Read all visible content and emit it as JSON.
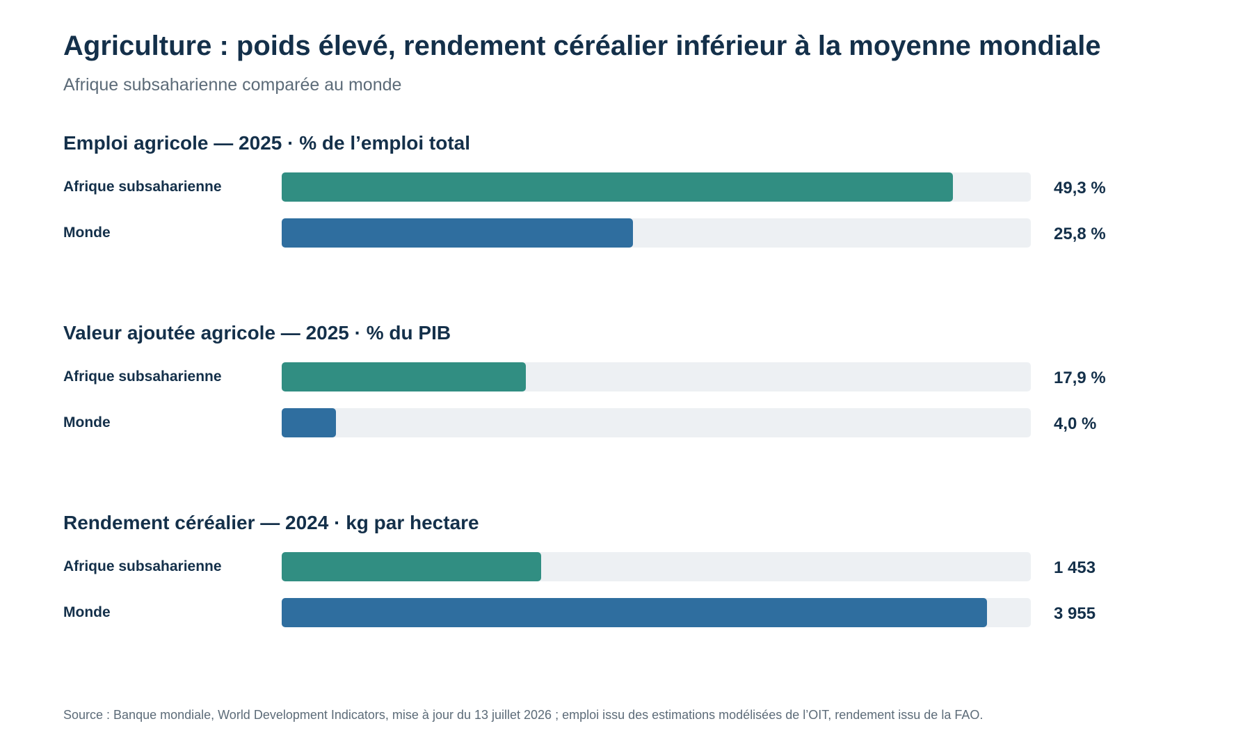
{
  "header": {
    "title": "Agriculture : poids élevé, rendement céréalier inférieur à la moyenne mondiale",
    "subtitle": "Afrique subsaharienne comparée au monde"
  },
  "colors": {
    "ssa": "#318e82",
    "world": "#2f6e9f",
    "track": "#edf0f3",
    "text": "#14304a",
    "muted": "#5c6b78"
  },
  "chart_data": [
    {
      "type": "bar",
      "orientation": "horizontal",
      "title": "Emploi agricole — 2025 · % de l’emploi total",
      "categories": [
        "Afrique subsaharienne",
        "Monde"
      ],
      "values": [
        49.3,
        25.8
      ],
      "value_labels": [
        "49,3 %",
        "25,8 %"
      ],
      "xlim": [
        0,
        55
      ],
      "grid": false
    },
    {
      "type": "bar",
      "orientation": "horizontal",
      "title": "Valeur ajoutée agricole — 2025 · % du PIB",
      "categories": [
        "Afrique subsaharienne",
        "Monde"
      ],
      "values": [
        17.9,
        4.0
      ],
      "value_labels": [
        "17,9 %",
        "4,0 %"
      ],
      "xlim": [
        0,
        55
      ],
      "grid": false
    },
    {
      "type": "bar",
      "orientation": "horizontal",
      "title": "Rendement céréalier — 2024 · kg par hectare",
      "categories": [
        "Afrique subsaharienne",
        "Monde"
      ],
      "values": [
        1453,
        3955
      ],
      "value_labels": [
        "1 453",
        "3 955"
      ],
      "xlim": [
        0,
        4200
      ],
      "grid": false
    }
  ],
  "footer": {
    "source": "Source : Banque mondiale, World Development Indicators, mise à jour du 13 juillet 2026 ; emploi issu des estimations modélisées de l’OIT, rendement issu de la FAO."
  }
}
